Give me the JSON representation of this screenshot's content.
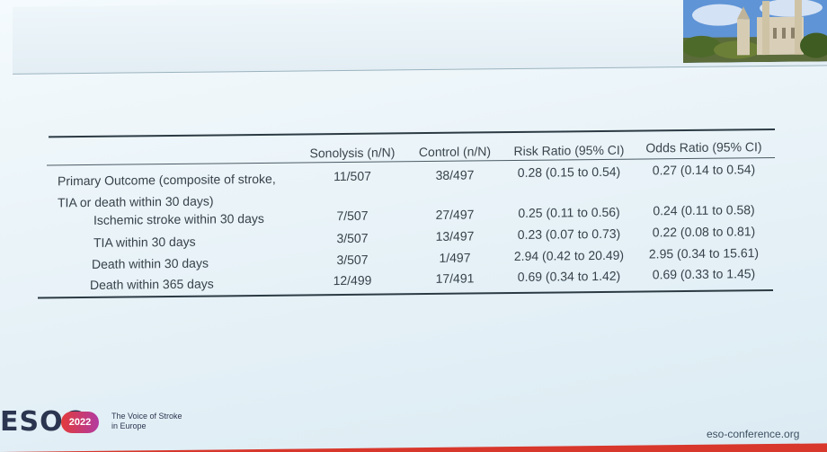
{
  "footer": {
    "logo_text": "ESOC",
    "badge": "2022",
    "tagline_line1": "The Voice of Stroke",
    "tagline_line2": "in Europe",
    "url": "eso-conference.org"
  },
  "table": {
    "headers": [
      "Sonolysis (n/N)",
      "Control (n/N)",
      "Risk Ratio (95% CI)",
      "Odds Ratio (95% CI)"
    ],
    "rows": [
      {
        "label": "Primary Outcome (composite of stroke,",
        "label2": "TIA or death within 30 days)",
        "sonolysis": "11/507",
        "control": "38/497",
        "rr": "0.28 (0.15 to 0.54)",
        "or": "0.27 (0.14 to 0.54)"
      },
      {
        "label": "Ischemic stroke within 30 days",
        "sonolysis": "7/507",
        "control": "27/497",
        "rr": "0.25 (0.11 to 0.56)",
        "or": "0.24 (0.11 to 0.58)"
      },
      {
        "label": "TIA within 30 days",
        "sonolysis": "3/507",
        "control": "13/497",
        "rr": "0.23 (0.07 to 0.73)",
        "or": "0.22 (0.08 to 0.81)"
      },
      {
        "label": "Death within 30 days",
        "sonolysis": "3/507",
        "control": "1/497",
        "rr": "2.94 (0.42 to 20.49)",
        "or": "2.95 (0.34 to 15.61)"
      },
      {
        "label": "Death within 365 days",
        "sonolysis": "12/499",
        "control": "17/491",
        "rr": "0.69 (0.34 to 1.42)",
        "or": "0.69 (0.33 to 1.45)"
      }
    ]
  }
}
